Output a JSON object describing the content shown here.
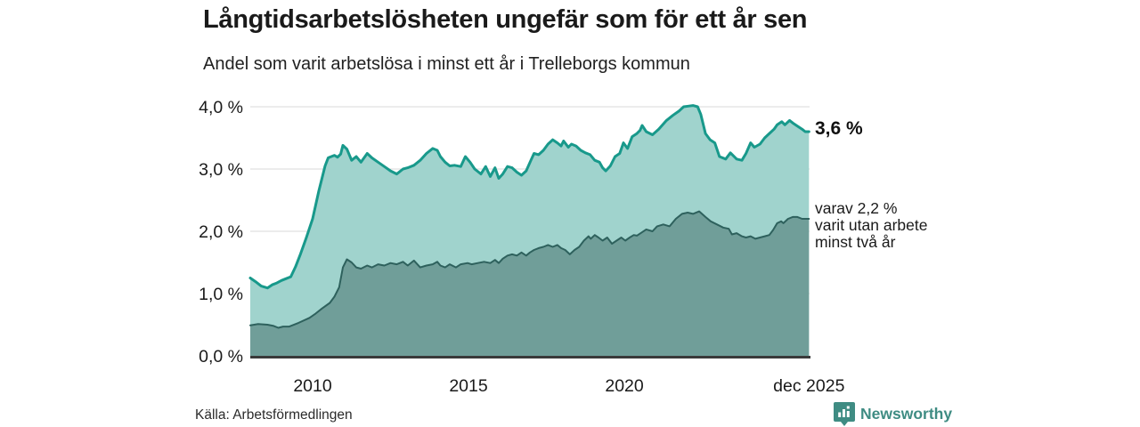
{
  "header": {
    "title": "Långtidsarbetslösheten ungefär som för ett år sen",
    "subtitle": "Andel som varit arbetslösa i minst ett år i Trelleborgs kommun"
  },
  "annotations": {
    "latest_value": "3,6 %",
    "sub_lines": [
      "varav 2,2 %",
      "varit utan arbete",
      "minst två år"
    ]
  },
  "footer": {
    "source": "Källa: Arbetsförmedlingen",
    "brand": "Newsworthy"
  },
  "colors": {
    "series_total_line": "#18998b",
    "series_total_fill": "#a0d3cd",
    "series_twoyear_line": "#2e615d",
    "series_twoyear_fill": "#709e99",
    "grid": "#d9d9d9",
    "axis": "#3a3a3a",
    "text": "#1a1a1a",
    "brand_teal": "#3f8c83"
  },
  "chart_data": {
    "type": "area",
    "title": "Långtidsarbetslösheten ungefär som för ett år sen",
    "subtitle": "Andel som varit arbetslösa i minst ett år i Trelleborgs kommun",
    "unit": "%",
    "xlim": [
      2008.0,
      2025.94
    ],
    "ylim": [
      0,
      4.0
    ],
    "grid": true,
    "x_ticks": [
      {
        "x": 2010.0,
        "label": "2010"
      },
      {
        "x": 2015.0,
        "label": "2015"
      },
      {
        "x": 2020.0,
        "label": "2020"
      },
      {
        "x": 2025.92,
        "label": "dec 2025"
      }
    ],
    "y_ticks": [
      {
        "v": 0,
        "label": "0,0 %"
      },
      {
        "v": 1,
        "label": "1,0 %"
      },
      {
        "v": 2,
        "label": "2,0 %"
      },
      {
        "v": 3,
        "label": "3,0 %"
      },
      {
        "v": 4,
        "label": "4,0 %"
      }
    ],
    "latest": {
      "total": 3.6,
      "two_year": 2.2,
      "period": "dec 2025"
    },
    "series": [
      {
        "name": "Andel arbetslösa minst ett år",
        "line": "#18998b",
        "fill": "#a0d3cd",
        "stroke_width": 3,
        "points": [
          [
            2008.0,
            1.25
          ],
          [
            2008.2,
            1.18
          ],
          [
            2008.35,
            1.12
          ],
          [
            2008.55,
            1.09
          ],
          [
            2008.7,
            1.14
          ],
          [
            2008.85,
            1.17
          ],
          [
            2009.0,
            1.21
          ],
          [
            2009.15,
            1.24
          ],
          [
            2009.3,
            1.27
          ],
          [
            2009.45,
            1.43
          ],
          [
            2009.6,
            1.62
          ],
          [
            2009.8,
            1.9
          ],
          [
            2010.0,
            2.2
          ],
          [
            2010.2,
            2.65
          ],
          [
            2010.4,
            3.05
          ],
          [
            2010.5,
            3.18
          ],
          [
            2010.6,
            3.2
          ],
          [
            2010.7,
            3.22
          ],
          [
            2010.8,
            3.19
          ],
          [
            2010.9,
            3.24
          ],
          [
            2010.97,
            3.38
          ],
          [
            2011.1,
            3.32
          ],
          [
            2011.25,
            3.14
          ],
          [
            2011.4,
            3.2
          ],
          [
            2011.55,
            3.11
          ],
          [
            2011.75,
            3.25
          ],
          [
            2011.9,
            3.18
          ],
          [
            2012.1,
            3.11
          ],
          [
            2012.3,
            3.04
          ],
          [
            2012.5,
            2.97
          ],
          [
            2012.7,
            2.92
          ],
          [
            2012.9,
            3.0
          ],
          [
            2013.05,
            3.02
          ],
          [
            2013.25,
            3.06
          ],
          [
            2013.45,
            3.14
          ],
          [
            2013.65,
            3.25
          ],
          [
            2013.85,
            3.33
          ],
          [
            2014.0,
            3.3
          ],
          [
            2014.1,
            3.2
          ],
          [
            2014.25,
            3.11
          ],
          [
            2014.4,
            3.05
          ],
          [
            2014.55,
            3.06
          ],
          [
            2014.75,
            3.04
          ],
          [
            2014.9,
            3.2
          ],
          [
            2015.05,
            3.11
          ],
          [
            2015.2,
            3.0
          ],
          [
            2015.4,
            2.92
          ],
          [
            2015.55,
            3.04
          ],
          [
            2015.7,
            2.88
          ],
          [
            2015.85,
            3.02
          ],
          [
            2015.97,
            2.85
          ],
          [
            2016.1,
            2.92
          ],
          [
            2016.25,
            3.04
          ],
          [
            2016.4,
            3.02
          ],
          [
            2016.55,
            2.95
          ],
          [
            2016.7,
            2.9
          ],
          [
            2016.85,
            2.97
          ],
          [
            2017.0,
            3.14
          ],
          [
            2017.1,
            3.25
          ],
          [
            2017.25,
            3.23
          ],
          [
            2017.4,
            3.3
          ],
          [
            2017.55,
            3.4
          ],
          [
            2017.7,
            3.47
          ],
          [
            2017.85,
            3.42
          ],
          [
            2017.97,
            3.37
          ],
          [
            2018.05,
            3.45
          ],
          [
            2018.2,
            3.35
          ],
          [
            2018.3,
            3.4
          ],
          [
            2018.45,
            3.37
          ],
          [
            2018.6,
            3.3
          ],
          [
            2018.75,
            3.26
          ],
          [
            2018.9,
            3.23
          ],
          [
            2019.05,
            3.14
          ],
          [
            2019.2,
            3.11
          ],
          [
            2019.3,
            3.02
          ],
          [
            2019.4,
            2.97
          ],
          [
            2019.55,
            3.05
          ],
          [
            2019.7,
            3.2
          ],
          [
            2019.85,
            3.25
          ],
          [
            2019.97,
            3.42
          ],
          [
            2020.1,
            3.33
          ],
          [
            2020.25,
            3.52
          ],
          [
            2020.4,
            3.57
          ],
          [
            2020.5,
            3.62
          ],
          [
            2020.57,
            3.7
          ],
          [
            2020.7,
            3.6
          ],
          [
            2020.9,
            3.55
          ],
          [
            2021.1,
            3.64
          ],
          [
            2021.35,
            3.78
          ],
          [
            2021.55,
            3.86
          ],
          [
            2021.75,
            3.93
          ],
          [
            2021.9,
            4.0
          ],
          [
            2022.05,
            4.01
          ],
          [
            2022.2,
            4.02
          ],
          [
            2022.35,
            4.0
          ],
          [
            2022.45,
            3.88
          ],
          [
            2022.6,
            3.57
          ],
          [
            2022.75,
            3.47
          ],
          [
            2022.9,
            3.42
          ],
          [
            2023.05,
            3.2
          ],
          [
            2023.25,
            3.16
          ],
          [
            2023.4,
            3.26
          ],
          [
            2023.6,
            3.16
          ],
          [
            2023.77,
            3.14
          ],
          [
            2023.9,
            3.25
          ],
          [
            2024.05,
            3.42
          ],
          [
            2024.17,
            3.35
          ],
          [
            2024.35,
            3.4
          ],
          [
            2024.5,
            3.5
          ],
          [
            2024.65,
            3.57
          ],
          [
            2024.8,
            3.64
          ],
          [
            2024.9,
            3.71
          ],
          [
            2025.05,
            3.76
          ],
          [
            2025.15,
            3.71
          ],
          [
            2025.3,
            3.78
          ],
          [
            2025.4,
            3.74
          ],
          [
            2025.55,
            3.69
          ],
          [
            2025.7,
            3.64
          ],
          [
            2025.8,
            3.6
          ],
          [
            2025.92,
            3.6
          ]
        ]
      },
      {
        "name": "varav utan arbete minst två år",
        "line": "#2e615d",
        "fill": "#709e99",
        "stroke_width": 2,
        "points": [
          [
            2008.0,
            0.49
          ],
          [
            2008.25,
            0.51
          ],
          [
            2008.55,
            0.5
          ],
          [
            2008.75,
            0.48
          ],
          [
            2008.9,
            0.45
          ],
          [
            2009.05,
            0.47
          ],
          [
            2009.25,
            0.47
          ],
          [
            2009.55,
            0.53
          ],
          [
            2009.9,
            0.61
          ],
          [
            2010.1,
            0.68
          ],
          [
            2010.3,
            0.76
          ],
          [
            2010.55,
            0.85
          ],
          [
            2010.7,
            0.95
          ],
          [
            2010.85,
            1.1
          ],
          [
            2010.97,
            1.42
          ],
          [
            2011.1,
            1.55
          ],
          [
            2011.25,
            1.5
          ],
          [
            2011.4,
            1.42
          ],
          [
            2011.55,
            1.4
          ],
          [
            2011.75,
            1.45
          ],
          [
            2011.9,
            1.42
          ],
          [
            2012.1,
            1.47
          ],
          [
            2012.3,
            1.45
          ],
          [
            2012.5,
            1.49
          ],
          [
            2012.7,
            1.47
          ],
          [
            2012.9,
            1.51
          ],
          [
            2013.05,
            1.45
          ],
          [
            2013.25,
            1.53
          ],
          [
            2013.45,
            1.42
          ],
          [
            2013.65,
            1.45
          ],
          [
            2013.85,
            1.47
          ],
          [
            2014.0,
            1.51
          ],
          [
            2014.1,
            1.45
          ],
          [
            2014.25,
            1.42
          ],
          [
            2014.4,
            1.47
          ],
          [
            2014.6,
            1.42
          ],
          [
            2014.75,
            1.47
          ],
          [
            2014.97,
            1.49
          ],
          [
            2015.1,
            1.47
          ],
          [
            2015.3,
            1.49
          ],
          [
            2015.5,
            1.51
          ],
          [
            2015.7,
            1.49
          ],
          [
            2015.85,
            1.54
          ],
          [
            2015.97,
            1.49
          ],
          [
            2016.1,
            1.56
          ],
          [
            2016.25,
            1.61
          ],
          [
            2016.4,
            1.63
          ],
          [
            2016.55,
            1.61
          ],
          [
            2016.7,
            1.66
          ],
          [
            2016.85,
            1.61
          ],
          [
            2016.97,
            1.66
          ],
          [
            2017.1,
            1.7
          ],
          [
            2017.25,
            1.73
          ],
          [
            2017.4,
            1.75
          ],
          [
            2017.55,
            1.78
          ],
          [
            2017.7,
            1.75
          ],
          [
            2017.85,
            1.78
          ],
          [
            2017.97,
            1.73
          ],
          [
            2018.1,
            1.7
          ],
          [
            2018.25,
            1.63
          ],
          [
            2018.4,
            1.7
          ],
          [
            2018.55,
            1.75
          ],
          [
            2018.7,
            1.85
          ],
          [
            2018.85,
            1.92
          ],
          [
            2018.92,
            1.88
          ],
          [
            2019.05,
            1.94
          ],
          [
            2019.17,
            1.9
          ],
          [
            2019.3,
            1.85
          ],
          [
            2019.45,
            1.9
          ],
          [
            2019.6,
            1.8
          ],
          [
            2019.75,
            1.85
          ],
          [
            2019.9,
            1.9
          ],
          [
            2020.03,
            1.85
          ],
          [
            2020.17,
            1.9
          ],
          [
            2020.3,
            1.94
          ],
          [
            2020.4,
            1.93
          ],
          [
            2020.7,
            2.03
          ],
          [
            2020.9,
            2.0
          ],
          [
            2021.05,
            2.08
          ],
          [
            2021.25,
            2.11
          ],
          [
            2021.45,
            2.08
          ],
          [
            2021.65,
            2.2
          ],
          [
            2021.85,
            2.28
          ],
          [
            2022.03,
            2.3
          ],
          [
            2022.2,
            2.28
          ],
          [
            2022.4,
            2.32
          ],
          [
            2022.6,
            2.23
          ],
          [
            2022.77,
            2.16
          ],
          [
            2022.97,
            2.11
          ],
          [
            2023.17,
            2.06
          ],
          [
            2023.35,
            2.04
          ],
          [
            2023.45,
            1.95
          ],
          [
            2023.6,
            1.97
          ],
          [
            2023.77,
            1.92
          ],
          [
            2023.9,
            1.9
          ],
          [
            2024.05,
            1.92
          ],
          [
            2024.2,
            1.88
          ],
          [
            2024.35,
            1.9
          ],
          [
            2024.5,
            1.92
          ],
          [
            2024.65,
            1.94
          ],
          [
            2024.77,
            2.02
          ],
          [
            2024.9,
            2.13
          ],
          [
            2025.03,
            2.16
          ],
          [
            2025.1,
            2.13
          ],
          [
            2025.25,
            2.2
          ],
          [
            2025.4,
            2.23
          ],
          [
            2025.55,
            2.23
          ],
          [
            2025.7,
            2.2
          ],
          [
            2025.92,
            2.2
          ]
        ]
      }
    ]
  }
}
